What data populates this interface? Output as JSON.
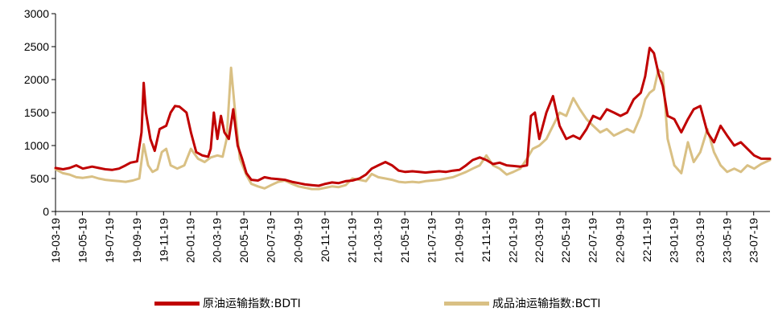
{
  "chart_data": {
    "type": "line",
    "title": "",
    "xlabel": "",
    "ylabel": "",
    "ylim": [
      0,
      3000
    ],
    "yticks": [
      0,
      500,
      1000,
      1500,
      2000,
      2500,
      3000
    ],
    "x_tick_labels": [
      "19-03-19",
      "19-05-19",
      "19-07-19",
      "19-09-19",
      "19-11-19",
      "20-01-19",
      "20-03-19",
      "20-05-19",
      "20-07-19",
      "20-09-19",
      "20-11-19",
      "21-01-19",
      "21-03-19",
      "21-05-19",
      "21-07-19",
      "21-09-19",
      "21-11-19",
      "22-01-19",
      "22-03-19",
      "22-05-19",
      "22-07-19",
      "22-09-19",
      "22-11-19",
      "23-01-19",
      "23-03-19",
      "23-05-19",
      "23-07-19"
    ],
    "x_start": "19-03-19",
    "x_end": "23-08-25",
    "legend_position": "bottom-center",
    "grid": false,
    "series": [
      {
        "name": "原油运输指数:BDTI",
        "color": "#C00000",
        "points": [
          [
            "19-03-19",
            660
          ],
          [
            "19-04-05",
            640
          ],
          [
            "19-04-20",
            660
          ],
          [
            "19-05-05",
            700
          ],
          [
            "19-05-20",
            650
          ],
          [
            "19-06-10",
            680
          ],
          [
            "19-06-25",
            660
          ],
          [
            "19-07-10",
            640
          ],
          [
            "19-07-25",
            630
          ],
          [
            "19-08-10",
            650
          ],
          [
            "19-08-25",
            700
          ],
          [
            "19-09-05",
            740
          ],
          [
            "19-09-20",
            760
          ],
          [
            "19-09-30",
            1200
          ],
          [
            "19-10-05",
            1950
          ],
          [
            "19-10-10",
            1500
          ],
          [
            "19-10-20",
            1100
          ],
          [
            "19-10-30",
            920
          ],
          [
            "19-11-10",
            1250
          ],
          [
            "19-11-25",
            1300
          ],
          [
            "19-12-05",
            1500
          ],
          [
            "19-12-15",
            1600
          ],
          [
            "19-12-25",
            1590
          ],
          [
            "20-01-10",
            1500
          ],
          [
            "20-01-20",
            1200
          ],
          [
            "20-02-01",
            900
          ],
          [
            "20-02-15",
            850
          ],
          [
            "20-02-28",
            830
          ],
          [
            "20-03-05",
            950
          ],
          [
            "20-03-12",
            1500
          ],
          [
            "20-03-20",
            1100
          ],
          [
            "20-03-28",
            1450
          ],
          [
            "20-04-05",
            1200
          ],
          [
            "20-04-15",
            1100
          ],
          [
            "20-04-25",
            1550
          ],
          [
            "20-05-05",
            1000
          ],
          [
            "20-05-15",
            800
          ],
          [
            "20-05-25",
            580
          ],
          [
            "20-06-05",
            480
          ],
          [
            "20-06-20",
            470
          ],
          [
            "20-07-05",
            520
          ],
          [
            "20-07-20",
            500
          ],
          [
            "20-08-05",
            490
          ],
          [
            "20-08-20",
            480
          ],
          [
            "20-09-05",
            450
          ],
          [
            "20-09-20",
            430
          ],
          [
            "20-10-05",
            410
          ],
          [
            "20-10-20",
            400
          ],
          [
            "20-11-05",
            390
          ],
          [
            "20-11-20",
            420
          ],
          [
            "20-12-05",
            440
          ],
          [
            "20-12-20",
            430
          ],
          [
            "21-01-05",
            460
          ],
          [
            "21-01-20",
            470
          ],
          [
            "21-02-05",
            500
          ],
          [
            "21-02-20",
            560
          ],
          [
            "21-03-05",
            650
          ],
          [
            "21-03-20",
            700
          ],
          [
            "21-04-05",
            750
          ],
          [
            "21-04-20",
            700
          ],
          [
            "21-05-05",
            620
          ],
          [
            "21-05-20",
            600
          ],
          [
            "21-06-05",
            610
          ],
          [
            "21-06-20",
            600
          ],
          [
            "21-07-05",
            590
          ],
          [
            "21-07-20",
            600
          ],
          [
            "21-08-05",
            610
          ],
          [
            "21-08-20",
            600
          ],
          [
            "21-09-05",
            620
          ],
          [
            "21-09-20",
            630
          ],
          [
            "21-10-05",
            700
          ],
          [
            "21-10-20",
            780
          ],
          [
            "21-11-05",
            820
          ],
          [
            "21-11-20",
            780
          ],
          [
            "21-12-05",
            720
          ],
          [
            "21-12-20",
            740
          ],
          [
            "22-01-05",
            700
          ],
          [
            "22-01-20",
            690
          ],
          [
            "22-02-05",
            680
          ],
          [
            "22-02-20",
            700
          ],
          [
            "22-03-01",
            1450
          ],
          [
            "22-03-10",
            1500
          ],
          [
            "22-03-20",
            1100
          ],
          [
            "22-04-05",
            1500
          ],
          [
            "22-04-20",
            1750
          ],
          [
            "22-05-05",
            1300
          ],
          [
            "22-05-20",
            1100
          ],
          [
            "22-06-05",
            1150
          ],
          [
            "22-06-20",
            1100
          ],
          [
            "22-07-05",
            1250
          ],
          [
            "22-07-20",
            1450
          ],
          [
            "22-08-05",
            1400
          ],
          [
            "22-08-20",
            1550
          ],
          [
            "22-09-05",
            1500
          ],
          [
            "22-09-20",
            1450
          ],
          [
            "22-10-05",
            1500
          ],
          [
            "22-10-20",
            1700
          ],
          [
            "22-11-05",
            1800
          ],
          [
            "22-11-15",
            2050
          ],
          [
            "22-11-25",
            2480
          ],
          [
            "22-12-05",
            2400
          ],
          [
            "22-12-15",
            2100
          ],
          [
            "22-12-25",
            1900
          ],
          [
            "23-01-05",
            1450
          ],
          [
            "23-01-20",
            1400
          ],
          [
            "23-02-05",
            1200
          ],
          [
            "23-02-20",
            1400
          ],
          [
            "23-03-05",
            1550
          ],
          [
            "23-03-20",
            1600
          ],
          [
            "23-04-05",
            1200
          ],
          [
            "23-04-20",
            1050
          ],
          [
            "23-05-05",
            1300
          ],
          [
            "23-05-20",
            1150
          ],
          [
            "23-06-05",
            1000
          ],
          [
            "23-06-20",
            1050
          ],
          [
            "23-07-05",
            950
          ],
          [
            "23-07-20",
            850
          ],
          [
            "23-08-05",
            800
          ],
          [
            "23-08-25",
            800
          ]
        ]
      },
      {
        "name": "成品油运输指数:BCTI",
        "color": "#D9C084",
        "points": [
          [
            "19-03-19",
            640
          ],
          [
            "19-04-05",
            580
          ],
          [
            "19-04-20",
            560
          ],
          [
            "19-05-05",
            520
          ],
          [
            "19-05-20",
            510
          ],
          [
            "19-06-10",
            530
          ],
          [
            "19-06-25",
            500
          ],
          [
            "19-07-10",
            480
          ],
          [
            "19-07-25",
            470
          ],
          [
            "19-08-10",
            460
          ],
          [
            "19-08-25",
            450
          ],
          [
            "19-09-10",
            470
          ],
          [
            "19-09-25",
            500
          ],
          [
            "19-10-05",
            1020
          ],
          [
            "19-10-15",
            700
          ],
          [
            "19-10-25",
            600
          ],
          [
            "19-11-05",
            640
          ],
          [
            "19-11-15",
            900
          ],
          [
            "19-11-25",
            950
          ],
          [
            "19-12-05",
            700
          ],
          [
            "19-12-20",
            650
          ],
          [
            "20-01-05",
            700
          ],
          [
            "20-01-20",
            950
          ],
          [
            "20-02-05",
            800
          ],
          [
            "20-02-20",
            750
          ],
          [
            "20-03-05",
            820
          ],
          [
            "20-03-20",
            850
          ],
          [
            "20-04-01",
            830
          ],
          [
            "20-04-10",
            1100
          ],
          [
            "20-04-20",
            2180
          ],
          [
            "20-04-28",
            1600
          ],
          [
            "20-05-10",
            800
          ],
          [
            "20-05-25",
            550
          ],
          [
            "20-06-05",
            420
          ],
          [
            "20-06-20",
            380
          ],
          [
            "20-07-05",
            350
          ],
          [
            "20-07-20",
            400
          ],
          [
            "20-08-05",
            450
          ],
          [
            "20-08-20",
            470
          ],
          [
            "20-09-05",
            420
          ],
          [
            "20-09-20",
            380
          ],
          [
            "20-10-05",
            360
          ],
          [
            "20-10-20",
            340
          ],
          [
            "20-11-05",
            340
          ],
          [
            "20-11-20",
            360
          ],
          [
            "20-12-05",
            380
          ],
          [
            "20-12-20",
            370
          ],
          [
            "21-01-05",
            400
          ],
          [
            "21-01-20",
            500
          ],
          [
            "21-02-05",
            480
          ],
          [
            "21-02-20",
            460
          ],
          [
            "21-03-05",
            570
          ],
          [
            "21-03-20",
            520
          ],
          [
            "21-04-05",
            500
          ],
          [
            "21-04-20",
            480
          ],
          [
            "21-05-05",
            450
          ],
          [
            "21-05-20",
            440
          ],
          [
            "21-06-05",
            450
          ],
          [
            "21-06-20",
            440
          ],
          [
            "21-07-05",
            460
          ],
          [
            "21-07-20",
            470
          ],
          [
            "21-08-05",
            480
          ],
          [
            "21-08-20",
            500
          ],
          [
            "21-09-05",
            520
          ],
          [
            "21-09-20",
            560
          ],
          [
            "21-10-05",
            600
          ],
          [
            "21-10-20",
            650
          ],
          [
            "21-11-05",
            700
          ],
          [
            "21-11-20",
            850
          ],
          [
            "21-12-05",
            700
          ],
          [
            "21-12-20",
            650
          ],
          [
            "22-01-05",
            560
          ],
          [
            "22-01-20",
            600
          ],
          [
            "22-02-05",
            650
          ],
          [
            "22-02-20",
            800
          ],
          [
            "22-03-05",
            950
          ],
          [
            "22-03-20",
            1000
          ],
          [
            "22-04-05",
            1100
          ],
          [
            "22-04-20",
            1300
          ],
          [
            "22-05-05",
            1500
          ],
          [
            "22-05-20",
            1450
          ],
          [
            "22-06-05",
            1720
          ],
          [
            "22-06-20",
            1550
          ],
          [
            "22-07-05",
            1400
          ],
          [
            "22-07-20",
            1300
          ],
          [
            "22-08-05",
            1200
          ],
          [
            "22-08-20",
            1250
          ],
          [
            "22-09-05",
            1150
          ],
          [
            "22-09-20",
            1200
          ],
          [
            "22-10-05",
            1250
          ],
          [
            "22-10-20",
            1200
          ],
          [
            "22-11-05",
            1450
          ],
          [
            "22-11-15",
            1700
          ],
          [
            "22-11-25",
            1800
          ],
          [
            "22-12-05",
            1850
          ],
          [
            "22-12-15",
            2150
          ],
          [
            "22-12-25",
            2100
          ],
          [
            "23-01-05",
            1100
          ],
          [
            "23-01-20",
            700
          ],
          [
            "23-02-05",
            580
          ],
          [
            "23-02-20",
            1050
          ],
          [
            "23-03-05",
            750
          ],
          [
            "23-03-20",
            900
          ],
          [
            "23-04-05",
            1250
          ],
          [
            "23-04-20",
            900
          ],
          [
            "23-05-05",
            700
          ],
          [
            "23-05-20",
            600
          ],
          [
            "23-06-05",
            650
          ],
          [
            "23-06-20",
            600
          ],
          [
            "23-07-05",
            700
          ],
          [
            "23-07-20",
            650
          ],
          [
            "23-08-05",
            720
          ],
          [
            "23-08-25",
            780
          ]
        ]
      }
    ]
  }
}
